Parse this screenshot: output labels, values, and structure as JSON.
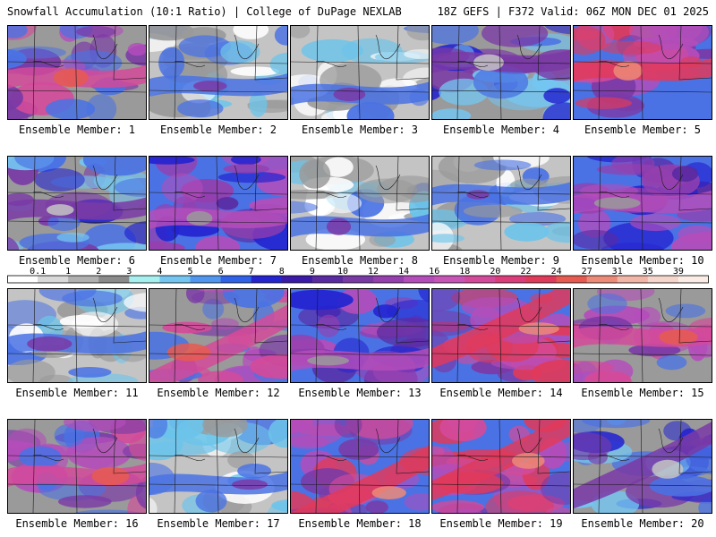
{
  "header": {
    "left": "Snowfall Accumulation (10:1 Ratio) | College of DuPage NEXLAB",
    "right": "18Z GEFS | F372 Valid: 06Z MON DEC 01 2025"
  },
  "members": [
    {
      "label": "Ensemble Member: 1",
      "pattern": "bands",
      "theme": "pink"
    },
    {
      "label": "Ensemble Member: 2",
      "pattern": "bands",
      "theme": "gray"
    },
    {
      "label": "Ensemble Member: 3",
      "pattern": "bands",
      "theme": "gray"
    },
    {
      "label": "Ensemble Member: 4",
      "pattern": "bands",
      "theme": "blue"
    },
    {
      "label": "Ensemble Member: 5",
      "pattern": "bands",
      "theme": "red"
    },
    {
      "label": "Ensemble Member: 6",
      "pattern": "bands",
      "theme": "blue"
    },
    {
      "label": "Ensemble Member: 7",
      "pattern": "bands",
      "theme": "purple"
    },
    {
      "label": "Ensemble Member: 8",
      "pattern": "bands",
      "theme": "gray"
    },
    {
      "label": "Ensemble Member: 9",
      "pattern": "bands",
      "theme": "gray"
    },
    {
      "label": "Ensemble Member: 10",
      "pattern": "bands",
      "theme": "purple"
    },
    {
      "label": "Ensemble Member: 11",
      "pattern": "bands",
      "theme": "gray"
    },
    {
      "label": "Ensemble Member: 12",
      "pattern": "diag",
      "theme": "pink"
    },
    {
      "label": "Ensemble Member: 13",
      "pattern": "bands",
      "theme": "purple"
    },
    {
      "label": "Ensemble Member: 14",
      "pattern": "diag",
      "theme": "red"
    },
    {
      "label": "Ensemble Member: 15",
      "pattern": "bands",
      "theme": "pink"
    },
    {
      "label": "Ensemble Member: 16",
      "pattern": "bands",
      "theme": "pink"
    },
    {
      "label": "Ensemble Member: 17",
      "pattern": "bands",
      "theme": "gray"
    },
    {
      "label": "Ensemble Member: 18",
      "pattern": "diag",
      "theme": "red"
    },
    {
      "label": "Ensemble Member: 19",
      "pattern": "diag",
      "theme": "red"
    },
    {
      "label": "Ensemble Member: 20",
      "pattern": "diag",
      "theme": "blue"
    }
  ],
  "colorbar": {
    "ticks": [
      "0.1",
      "1",
      "2",
      "3",
      "4",
      "5",
      "6",
      "7",
      "8",
      "9",
      "10",
      "12",
      "14",
      "16",
      "18",
      "20",
      "22",
      "24",
      "27",
      "31",
      "35",
      "39"
    ],
    "colors": [
      "#ffffff",
      "#d9d9d9",
      "#b0b0b0",
      "#8a8a8a",
      "#a6f0f0",
      "#74c6f2",
      "#5096ee",
      "#2f62e8",
      "#2424d0",
      "#3a1aa8",
      "#5a2aa2",
      "#7a3aa6",
      "#963fae",
      "#b44dba",
      "#c755b8",
      "#d44a9a",
      "#dc3c7a",
      "#e03a5a",
      "#e65a50",
      "#ec8a78",
      "#f2b6a6",
      "#f6d6cc",
      "#fbede6"
    ]
  }
}
